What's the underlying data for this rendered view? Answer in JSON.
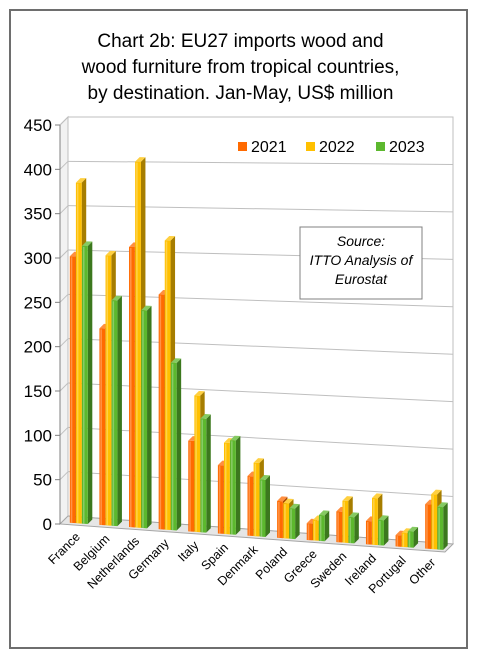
{
  "chart_data": {
    "type": "bar",
    "title_lines": [
      "Chart 2b: EU27 imports wood and",
      "wood furniture from tropical countries,",
      "by destination. Jan-May, US$ million"
    ],
    "categories": [
      "France",
      "Belgium",
      "Netherlands",
      "Germany",
      "Italy",
      "Spain",
      "Denmark",
      "Poland",
      "Greece",
      "Sweden",
      "Ireland",
      "Portugal",
      "Other"
    ],
    "series": [
      {
        "name": "2021",
        "color": "#ff6a00",
        "values": [
          300,
          220,
          312,
          260,
          100,
          75,
          65,
          40,
          18,
          33,
          25,
          12,
          47
        ]
      },
      {
        "name": "2022",
        "color": "#ffc000",
        "values": [
          383,
          302,
          407,
          320,
          150,
          100,
          80,
          38,
          22,
          45,
          50,
          15,
          58
        ]
      },
      {
        "name": "2023",
        "color": "#5cb82e",
        "values": [
          312,
          252,
          242,
          185,
          125,
          103,
          62,
          33,
          28,
          28,
          27,
          17,
          45
        ]
      }
    ],
    "y_ticks": [
      "0",
      "50",
      "100",
      "150",
      "200",
      "250",
      "300",
      "350",
      "400",
      "450"
    ],
    "ylim": [
      0,
      450
    ],
    "grid": true,
    "legend_position": "top-right",
    "annotation_lines": [
      "Source:",
      "ITTO Analysis of",
      "Eurostat"
    ]
  }
}
